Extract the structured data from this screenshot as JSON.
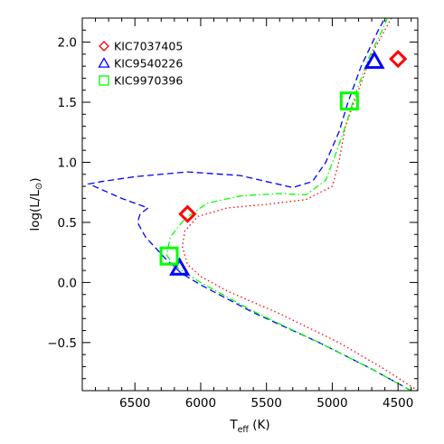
{
  "chart_data": {
    "type": "scatter",
    "title": "",
    "xlabel_main": "T",
    "xlabel_sub": "eff",
    "xlabel_unit": " (K)",
    "ylabel_main": "log(L/L",
    "ylabel_sym": "⊙",
    "ylabel_close": ")",
    "xlim": [
      6900,
      4350
    ],
    "ylim": [
      -0.9,
      2.2
    ],
    "x_reversed": true,
    "x_ticks": [
      6500,
      6000,
      5500,
      5000,
      4500
    ],
    "x_tick_labels": [
      "6500",
      "6000",
      "5500",
      "5000",
      "4500"
    ],
    "y_ticks": [
      -0.5,
      0.0,
      0.5,
      1.0,
      1.5,
      2.0
    ],
    "y_tick_labels": [
      "−0.5",
      "0.0",
      "0.5",
      "1.0",
      "1.5",
      "2.0"
    ],
    "legend_position": "top-left",
    "series": [
      {
        "name": "KIC7037405",
        "marker": "diamond",
        "color": "#ff0000",
        "line_style": "dotted",
        "x": [
          4500
        ],
        "y": [
          1.86
        ],
        "track": [
          [
            4350,
            -0.9
          ],
          [
            4620,
            -0.71
          ],
          [
            4950,
            -0.5
          ],
          [
            5400,
            -0.26
          ],
          [
            5800,
            -0.07
          ],
          [
            6000,
            0.05
          ],
          [
            6100,
            0.15
          ],
          [
            6140,
            0.3
          ],
          [
            6120,
            0.43
          ],
          [
            6020,
            0.55
          ],
          [
            5800,
            0.62
          ],
          [
            5500,
            0.65
          ],
          [
            5200,
            0.69
          ],
          [
            5000,
            0.8
          ],
          [
            4950,
            1.0
          ],
          [
            4900,
            1.3
          ],
          [
            4800,
            1.6
          ],
          [
            4700,
            1.9
          ],
          [
            4600,
            2.1
          ],
          [
            4550,
            2.2
          ]
        ]
      },
      {
        "name": "KIC9540226",
        "marker": "triangle",
        "color": "#0000ff",
        "line_style": "dashed",
        "x": [
          4680
        ],
        "y": [
          1.84
        ],
        "track": [
          [
            4400,
            -0.9
          ],
          [
            4700,
            -0.72
          ],
          [
            5100,
            -0.5
          ],
          [
            5600,
            -0.25
          ],
          [
            6000,
            -0.02
          ],
          [
            6150,
            0.08
          ],
          [
            6270,
            0.2
          ],
          [
            6420,
            0.38
          ],
          [
            6480,
            0.5
          ],
          [
            6460,
            0.57
          ],
          [
            6400,
            0.62
          ],
          [
            6600,
            0.7
          ],
          [
            6850,
            0.82
          ],
          [
            6750,
            0.84
          ],
          [
            6500,
            0.88
          ],
          [
            6100,
            0.92
          ],
          [
            5700,
            0.89
          ],
          [
            5300,
            0.79
          ],
          [
            5150,
            0.84
          ],
          [
            5050,
            1.0
          ],
          [
            4950,
            1.25
          ],
          [
            4880,
            1.5
          ],
          [
            4780,
            1.8
          ],
          [
            4650,
            2.1
          ],
          [
            4600,
            2.2
          ]
        ]
      },
      {
        "name": "KIC9970396",
        "marker": "square",
        "color": "#00ff00",
        "line_style": "dashdot",
        "x": [
          4870
        ],
        "y": [
          1.51
        ],
        "track": [
          [
            4400,
            -0.9
          ],
          [
            4700,
            -0.72
          ],
          [
            5100,
            -0.5
          ],
          [
            5600,
            -0.24
          ],
          [
            6000,
            0.0
          ],
          [
            6200,
            0.14
          ],
          [
            6260,
            0.23
          ],
          [
            6230,
            0.38
          ],
          [
            6120,
            0.53
          ],
          [
            5950,
            0.66
          ],
          [
            5700,
            0.72
          ],
          [
            5400,
            0.74
          ],
          [
            5200,
            0.73
          ],
          [
            5050,
            0.85
          ],
          [
            4980,
            1.05
          ],
          [
            4900,
            1.3
          ],
          [
            4830,
            1.55
          ],
          [
            4730,
            1.85
          ],
          [
            4620,
            2.1
          ],
          [
            4580,
            2.2
          ]
        ]
      }
    ],
    "extra_points": [
      {
        "series": "KIC7037405",
        "x": 6100,
        "y": 0.57
      },
      {
        "series": "KIC9540226",
        "x": 6160,
        "y": 0.12
      },
      {
        "series": "KIC9970396",
        "x": 6240,
        "y": 0.22
      }
    ]
  }
}
